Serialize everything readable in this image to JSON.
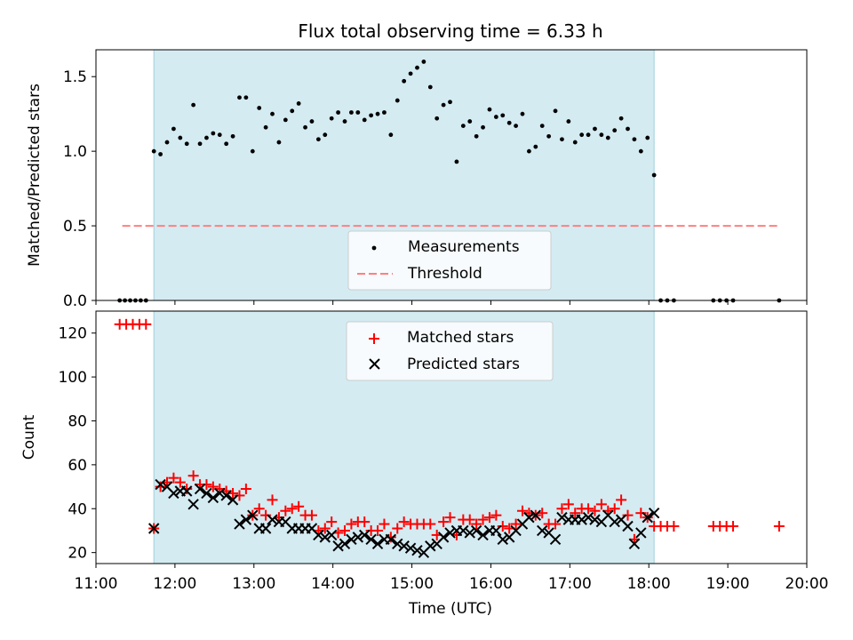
{
  "chart_data": [
    {
      "type": "scatter",
      "title": "Flux total observing time = 6.33 h",
      "xlabel": "",
      "ylabel": "Matched/Predicted stars",
      "xlim": [
        "11:00",
        "20:00"
      ],
      "ylim": [
        0,
        1.68
      ],
      "yticks": [
        0.0,
        0.5,
        1.0,
        1.5
      ],
      "ytick_labels": [
        "0.0",
        "0.5",
        "1.0",
        "1.5"
      ],
      "shaded_span": [
        "11:44",
        "18:04"
      ],
      "threshold": {
        "value": 0.5,
        "from": "11:20",
        "to": "19:40",
        "color": "#ff7f7f"
      },
      "legend_position": "lower center",
      "legend": [
        "Measurements",
        "Threshold"
      ],
      "series": [
        {
          "name": "Measurements",
          "color": "#000000",
          "points": [
            [
              "11:18",
              0
            ],
            [
              "11:22",
              0
            ],
            [
              "11:26",
              0
            ],
            [
              "11:30",
              0
            ],
            [
              "11:34",
              0
            ],
            [
              "11:38",
              0
            ],
            [
              "11:44",
              1.0
            ],
            [
              "11:49",
              0.98
            ],
            [
              "11:54",
              1.06
            ],
            [
              "11:59",
              1.15
            ],
            [
              "12:04",
              1.09
            ],
            [
              "12:09",
              1.05
            ],
            [
              "12:14",
              1.31
            ],
            [
              "12:19",
              1.05
            ],
            [
              "12:24",
              1.09
            ],
            [
              "12:29",
              1.12
            ],
            [
              "12:34",
              1.11
            ],
            [
              "12:39",
              1.05
            ],
            [
              "12:44",
              1.1
            ],
            [
              "12:49",
              1.36
            ],
            [
              "12:54",
              1.36
            ],
            [
              "12:59",
              1.0
            ],
            [
              "13:04",
              1.29
            ],
            [
              "13:09",
              1.16
            ],
            [
              "13:14",
              1.25
            ],
            [
              "13:19",
              1.06
            ],
            [
              "13:24",
              1.21
            ],
            [
              "13:29",
              1.27
            ],
            [
              "13:34",
              1.32
            ],
            [
              "13:39",
              1.16
            ],
            [
              "13:44",
              1.2
            ],
            [
              "13:49",
              1.08
            ],
            [
              "13:54",
              1.11
            ],
            [
              "13:59",
              1.22
            ],
            [
              "14:04",
              1.26
            ],
            [
              "14:09",
              1.2
            ],
            [
              "14:14",
              1.26
            ],
            [
              "14:19",
              1.26
            ],
            [
              "14:24",
              1.21
            ],
            [
              "14:29",
              1.24
            ],
            [
              "14:34",
              1.25
            ],
            [
              "14:39",
              1.26
            ],
            [
              "14:44",
              1.11
            ],
            [
              "14:49",
              1.34
            ],
            [
              "14:54",
              1.47
            ],
            [
              "14:59",
              1.52
            ],
            [
              "15:04",
              1.56
            ],
            [
              "15:09",
              1.6
            ],
            [
              "15:14",
              1.43
            ],
            [
              "15:19",
              1.22
            ],
            [
              "15:24",
              1.31
            ],
            [
              "15:29",
              1.33
            ],
            [
              "15:34",
              0.93
            ],
            [
              "15:39",
              1.17
            ],
            [
              "15:44",
              1.2
            ],
            [
              "15:49",
              1.1
            ],
            [
              "15:54",
              1.16
            ],
            [
              "15:59",
              1.28
            ],
            [
              "16:04",
              1.23
            ],
            [
              "16:09",
              1.24
            ],
            [
              "16:14",
              1.19
            ],
            [
              "16:19",
              1.17
            ],
            [
              "16:24",
              1.25
            ],
            [
              "16:29",
              1.0
            ],
            [
              "16:34",
              1.03
            ],
            [
              "16:39",
              1.17
            ],
            [
              "16:44",
              1.1
            ],
            [
              "16:49",
              1.27
            ],
            [
              "16:54",
              1.08
            ],
            [
              "16:59",
              1.2
            ],
            [
              "17:04",
              1.06
            ],
            [
              "17:09",
              1.11
            ],
            [
              "17:14",
              1.11
            ],
            [
              "17:19",
              1.15
            ],
            [
              "17:24",
              1.11
            ],
            [
              "17:29",
              1.09
            ],
            [
              "17:34",
              1.14
            ],
            [
              "17:39",
              1.22
            ],
            [
              "17:44",
              1.15
            ],
            [
              "17:49",
              1.08
            ],
            [
              "17:54",
              1.0
            ],
            [
              "17:59",
              1.09
            ],
            [
              "18:04",
              0.84
            ],
            [
              "18:09",
              0
            ],
            [
              "18:14",
              0
            ],
            [
              "18:19",
              0
            ],
            [
              "18:49",
              0
            ],
            [
              "18:54",
              0
            ],
            [
              "18:59",
              0
            ],
            [
              "19:04",
              0
            ],
            [
              "19:39",
              0
            ]
          ]
        }
      ]
    },
    {
      "type": "scatter",
      "title": "",
      "xlabel": "Time (UTC)",
      "ylabel": "Count",
      "xlim": [
        "11:00",
        "20:00"
      ],
      "ylim": [
        15,
        130
      ],
      "xticks": [
        "11:00",
        "12:00",
        "13:00",
        "14:00",
        "15:00",
        "16:00",
        "17:00",
        "18:00",
        "19:00",
        "20:00"
      ],
      "yticks": [
        20,
        40,
        60,
        80,
        100,
        120
      ],
      "ytick_labels": [
        "20",
        "40",
        "60",
        "80",
        "100",
        "120"
      ],
      "shaded_span": [
        "11:44",
        "18:04"
      ],
      "legend_position": "upper center",
      "legend": [
        "Matched stars",
        "Predicted stars"
      ],
      "series": [
        {
          "name": "Matched stars",
          "color": "#ff0000",
          "marker": "+",
          "points": [
            [
              "11:18",
              124
            ],
            [
              "11:23",
              124
            ],
            [
              "11:28",
              124
            ],
            [
              "11:33",
              124
            ],
            [
              "11:38",
              124
            ],
            [
              "11:44",
              31
            ],
            [
              "11:49",
              50
            ],
            [
              "11:54",
              52
            ],
            [
              "11:59",
              54
            ],
            [
              "12:04",
              52
            ],
            [
              "12:09",
              49
            ],
            [
              "12:14",
              55
            ],
            [
              "12:19",
              51
            ],
            [
              "12:24",
              51
            ],
            [
              "12:29",
              50
            ],
            [
              "12:34",
              49
            ],
            [
              "12:39",
              48
            ],
            [
              "12:44",
              47
            ],
            [
              "12:49",
              46
            ],
            [
              "12:54",
              49
            ],
            [
              "12:59",
              37
            ],
            [
              "13:04",
              40
            ],
            [
              "13:09",
              37
            ],
            [
              "13:14",
              44
            ],
            [
              "13:19",
              36
            ],
            [
              "13:24",
              39
            ],
            [
              "13:29",
              40
            ],
            [
              "13:34",
              41
            ],
            [
              "13:39",
              37
            ],
            [
              "13:44",
              37
            ],
            [
              "13:49",
              30
            ],
            [
              "13:54",
              31
            ],
            [
              "13:59",
              34
            ],
            [
              "14:04",
              29
            ],
            [
              "14:09",
              30
            ],
            [
              "14:14",
              33
            ],
            [
              "14:19",
              34
            ],
            [
              "14:24",
              34
            ],
            [
              "14:29",
              30
            ],
            [
              "14:34",
              30
            ],
            [
              "14:39",
              33
            ],
            [
              "14:44",
              27
            ],
            [
              "14:49",
              31
            ],
            [
              "14:54",
              34
            ],
            [
              "14:59",
              33
            ],
            [
              "15:04",
              33
            ],
            [
              "15:09",
              33
            ],
            [
              "15:14",
              33
            ],
            [
              "15:19",
              28
            ],
            [
              "15:24",
              34
            ],
            [
              "15:29",
              36
            ],
            [
              "15:34",
              28
            ],
            [
              "15:39",
              35
            ],
            [
              "15:44",
              35
            ],
            [
              "15:49",
              33
            ],
            [
              "15:54",
              35
            ],
            [
              "15:59",
              36
            ],
            [
              "16:04",
              37
            ],
            [
              "16:09",
              32
            ],
            [
              "16:14",
              31
            ],
            [
              "16:19",
              33
            ],
            [
              "16:24",
              39
            ],
            [
              "16:29",
              38
            ],
            [
              "16:34",
              37
            ],
            [
              "16:39",
              38
            ],
            [
              "16:44",
              33
            ],
            [
              "16:49",
              33
            ],
            [
              "16:54",
              40
            ],
            [
              "16:59",
              42
            ],
            [
              "17:04",
              38
            ],
            [
              "17:09",
              40
            ],
            [
              "17:14",
              40
            ],
            [
              "17:19",
              39
            ],
            [
              "17:24",
              42
            ],
            [
              "17:29",
              39
            ],
            [
              "17:34",
              40
            ],
            [
              "17:39",
              44
            ],
            [
              "17:44",
              37
            ],
            [
              "17:49",
              26
            ],
            [
              "17:54",
              38
            ],
            [
              "17:59",
              36
            ],
            [
              "18:04",
              32
            ],
            [
              "18:09",
              32
            ],
            [
              "18:14",
              32
            ],
            [
              "18:19",
              32
            ],
            [
              "18:49",
              32
            ],
            [
              "18:54",
              32
            ],
            [
              "18:59",
              32
            ],
            [
              "19:04",
              32
            ],
            [
              "19:39",
              32
            ]
          ]
        },
        {
          "name": "Predicted stars",
          "color": "#000000",
          "marker": "x",
          "points": [
            [
              "11:44",
              31
            ],
            [
              "11:49",
              51
            ],
            [
              "11:54",
              50
            ],
            [
              "11:59",
              47
            ],
            [
              "12:04",
              48
            ],
            [
              "12:09",
              48
            ],
            [
              "12:14",
              42
            ],
            [
              "12:19",
              49
            ],
            [
              "12:24",
              47
            ],
            [
              "12:29",
              45
            ],
            [
              "12:34",
              47
            ],
            [
              "12:39",
              46
            ],
            [
              "12:44",
              44
            ],
            [
              "12:49",
              33
            ],
            [
              "12:54",
              35
            ],
            [
              "12:59",
              37
            ],
            [
              "13:04",
              31
            ],
            [
              "13:09",
              31
            ],
            [
              "13:14",
              35
            ],
            [
              "13:19",
              34
            ],
            [
              "13:24",
              34
            ],
            [
              "13:29",
              31
            ],
            [
              "13:34",
              31
            ],
            [
              "13:39",
              31
            ],
            [
              "13:44",
              31
            ],
            [
              "13:49",
              28
            ],
            [
              "13:54",
              27
            ],
            [
              "13:59",
              28
            ],
            [
              "14:04",
              23
            ],
            [
              "14:09",
              24
            ],
            [
              "14:14",
              26
            ],
            [
              "14:19",
              27
            ],
            [
              "14:24",
              28
            ],
            [
              "14:29",
              26
            ],
            [
              "14:34",
              24
            ],
            [
              "14:39",
              26
            ],
            [
              "14:44",
              26
            ],
            [
              "14:49",
              24
            ],
            [
              "14:54",
              23
            ],
            [
              "14:59",
              22
            ],
            [
              "15:04",
              21
            ],
            [
              "15:09",
              20
            ],
            [
              "15:14",
              23
            ],
            [
              "15:19",
              24
            ],
            [
              "15:24",
              27
            ],
            [
              "15:29",
              29
            ],
            [
              "15:34",
              30
            ],
            [
              "15:39",
              30
            ],
            [
              "15:44",
              29
            ],
            [
              "15:49",
              30
            ],
            [
              "15:54",
              28
            ],
            [
              "15:59",
              30
            ],
            [
              "16:04",
              30
            ],
            [
              "16:09",
              26
            ],
            [
              "16:14",
              27
            ],
            [
              "16:19",
              30
            ],
            [
              "16:24",
              33
            ],
            [
              "16:29",
              36
            ],
            [
              "16:34",
              37
            ],
            [
              "16:39",
              30
            ],
            [
              "16:44",
              29
            ],
            [
              "16:49",
              26
            ],
            [
              "16:54",
              36
            ],
            [
              "16:59",
              35
            ],
            [
              "17:04",
              35
            ],
            [
              "17:09",
              35
            ],
            [
              "17:14",
              36
            ],
            [
              "17:19",
              35
            ],
            [
              "17:24",
              34
            ],
            [
              "17:29",
              37
            ],
            [
              "17:34",
              34
            ],
            [
              "17:39",
              35
            ],
            [
              "17:44",
              32
            ],
            [
              "17:49",
              24
            ],
            [
              "17:54",
              29
            ],
            [
              "17:59",
              36
            ],
            [
              "18:04",
              38
            ]
          ]
        }
      ]
    }
  ]
}
